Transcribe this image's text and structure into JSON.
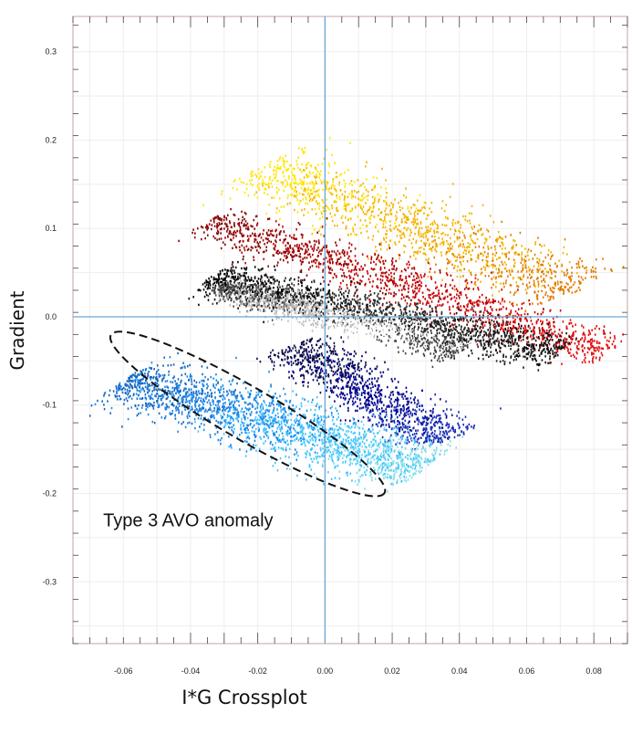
{
  "chart_data": {
    "type": "scatter",
    "title": "",
    "xlabel": "I*G Crossplot",
    "ylabel": "Gradient",
    "xlim": [
      -0.075,
      0.09
    ],
    "ylim": [
      -0.37,
      0.34
    ],
    "grid": true,
    "x_ticks": [
      "-0.06",
      "-0.04",
      "-0.02",
      "0.00",
      "0.02",
      "0.04",
      "0.06",
      "0.08"
    ],
    "x_tick_values": [
      -0.06,
      -0.04,
      -0.02,
      0.0,
      0.02,
      0.04,
      0.06,
      0.08
    ],
    "y_ticks": [
      "0.3",
      "0.2",
      "0.1",
      "0.0",
      "-0.1",
      "-0.2",
      "-0.3"
    ],
    "y_tick_values": [
      0.3,
      0.2,
      0.1,
      0.0,
      -0.1,
      -0.2,
      -0.3
    ],
    "crosshair": {
      "x": 0.0,
      "y": 0.0,
      "color": "#6aa7d6"
    },
    "clusters": [
      {
        "color_scale": [
          "#ffe600",
          "#f5b400",
          "#e07b00"
        ],
        "start": [
          -0.02,
          0.17
        ],
        "end": [
          0.075,
          0.03
        ],
        "width": 0.045,
        "count": 1400
      },
      {
        "color_scale": [
          "#8b0000",
          "#c00000",
          "#e01010"
        ],
        "start": [
          -0.035,
          0.11
        ],
        "end": [
          0.085,
          -0.04
        ],
        "width": 0.03,
        "count": 1400
      },
      {
        "color_scale": [
          "#000000",
          "#2b2b2b",
          "#111111"
        ],
        "start": [
          -0.035,
          0.045
        ],
        "end": [
          0.07,
          -0.04
        ],
        "width": 0.025,
        "count": 1700
      },
      {
        "color_scale": [
          "#4a4a4a",
          "#bbbbbb",
          "#ffffff",
          "#444444"
        ],
        "start": [
          -0.032,
          0.035
        ],
        "end": [
          0.04,
          -0.04
        ],
        "width": 0.02,
        "count": 1300
      },
      {
        "color_scale": [
          "#0a0a4a",
          "#00008b",
          "#1a2db8"
        ],
        "start": [
          -0.01,
          -0.03
        ],
        "end": [
          0.035,
          -0.14
        ],
        "width": 0.035,
        "count": 1100
      },
      {
        "color_scale": [
          "#1565c0",
          "#1e88e5",
          "#40c4ff",
          "#80deea"
        ],
        "start": [
          -0.06,
          -0.07
        ],
        "end": [
          0.03,
          -0.17
        ],
        "width": 0.04,
        "count": 2200
      }
    ],
    "annotations": [
      {
        "text": "Type 3 AVO anomaly",
        "x": -0.066,
        "y": -0.237
      }
    ],
    "highlight_ellipse": {
      "cx": -0.023,
      "cy": -0.11,
      "rx": 0.047,
      "ry": 0.03,
      "angle_deg": 30,
      "style": "dashed"
    }
  }
}
